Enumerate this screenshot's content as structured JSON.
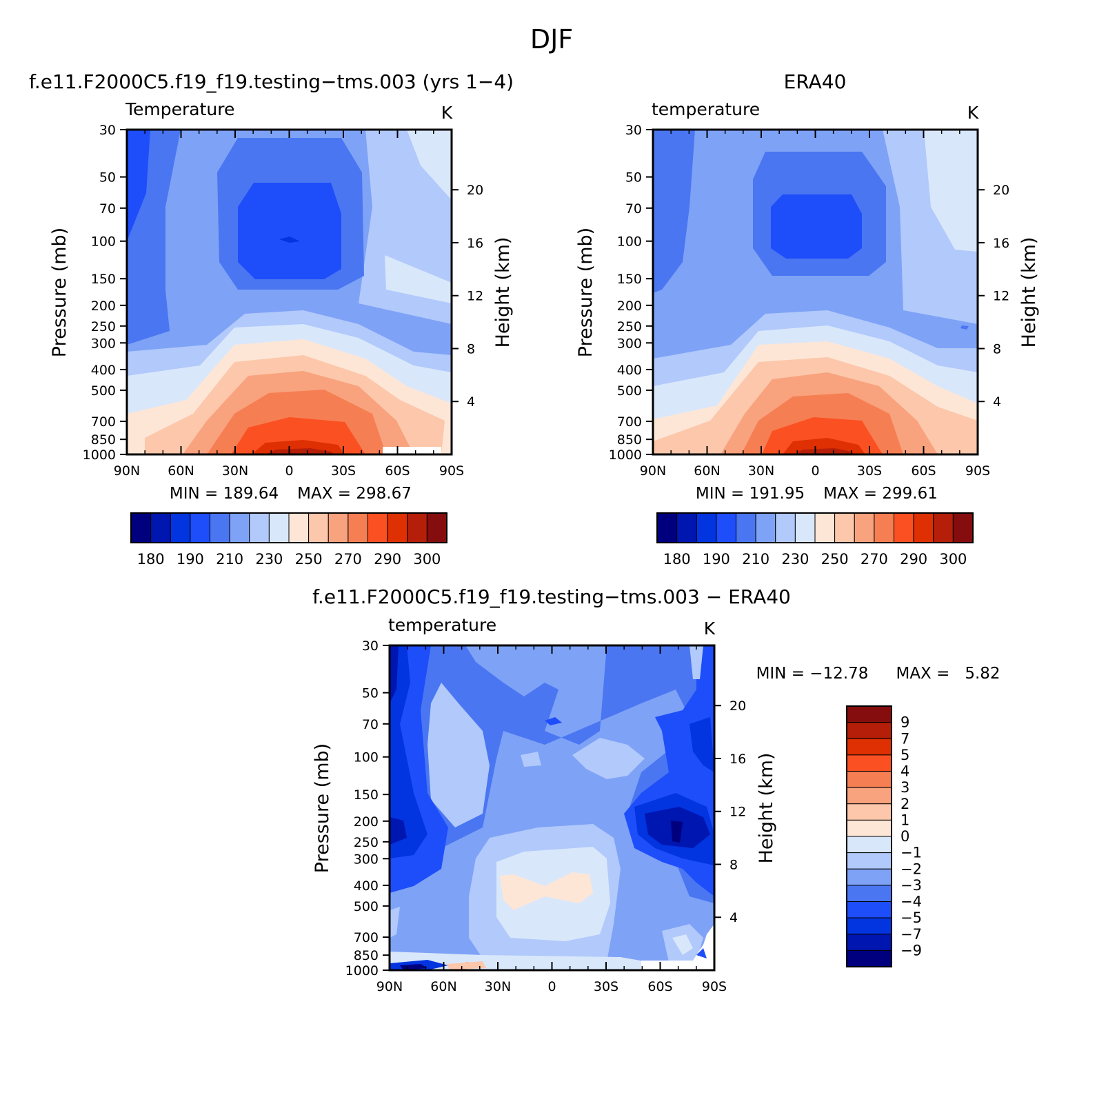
{
  "figure": {
    "title": "DJF"
  },
  "palette_abs": [
    "#00007f",
    "#0016b0",
    "#0234e0",
    "#1e4dfa",
    "#4a76f2",
    "#7ea2f6",
    "#b1c9fb",
    "#d9e7fb",
    "#fde6d6",
    "#fcc7aa",
    "#f8a27e",
    "#f67e53",
    "#fa5022",
    "#de3003",
    "#b51e09",
    "#850d0d"
  ],
  "palette_diff": [
    "#00007f",
    "#0016b0",
    "#0234e0",
    "#1e4dfa",
    "#4a76f2",
    "#7ea2f6",
    "#b1c9fb",
    "#d9e7fb",
    "#fde6d6",
    "#fcc7aa",
    "#f8a27e",
    "#f67e53",
    "#fa5022",
    "#de3003",
    "#b51e09",
    "#850d0d"
  ],
  "chart_data": [
    {
      "type": "heatmap",
      "title": "f.e11.F2000C5.f19_f19.testing−tms.003 (yrs 1−4)",
      "subtitle": "Temperature",
      "units": "K",
      "xlabel": "",
      "ylabel": "Pressure (mb)",
      "ylabel_right": "Height (km)",
      "x_ticks": [
        "90N",
        "60N",
        "30N",
        "0",
        "30S",
        "60S",
        "90S"
      ],
      "y_ticks": [
        30,
        50,
        70,
        100,
        150,
        200,
        250,
        300,
        400,
        500,
        700,
        850,
        1000
      ],
      "y_right_ticks": [
        20,
        16,
        12,
        8,
        4
      ],
      "min_label": "MIN = 189.64",
      "max_label": "MAX = 298.67",
      "min": 189.64,
      "max": 298.67,
      "colorbar_labels": [
        "180",
        "190",
        "210",
        "230",
        "250",
        "270",
        "290",
        "300"
      ],
      "levels": [
        175,
        180,
        185,
        190,
        200,
        210,
        220,
        230,
        240,
        250,
        260,
        270,
        280,
        290,
        295,
        300
      ]
    },
    {
      "type": "heatmap",
      "title": "ERA40",
      "subtitle": "temperature",
      "units": "K",
      "xlabel": "",
      "ylabel": "Pressure (mb)",
      "ylabel_right": "Height (km)",
      "x_ticks": [
        "90N",
        "60N",
        "30N",
        "0",
        "30S",
        "60S",
        "90S"
      ],
      "y_ticks": [
        30,
        50,
        70,
        100,
        150,
        200,
        250,
        300,
        400,
        500,
        700,
        850,
        1000
      ],
      "y_right_ticks": [
        20,
        16,
        12,
        8,
        4
      ],
      "min_label": "MIN = 191.95",
      "max_label": "MAX = 299.61",
      "min": 191.95,
      "max": 299.61,
      "colorbar_labels": [
        "180",
        "190",
        "210",
        "230",
        "250",
        "270",
        "290",
        "300"
      ],
      "levels": [
        175,
        180,
        185,
        190,
        200,
        210,
        220,
        230,
        240,
        250,
        260,
        270,
        280,
        290,
        295,
        300
      ]
    },
    {
      "type": "heatmap",
      "title": "f.e11.F2000C5.f19_f19.testing−tms.003 − ERA40",
      "subtitle": "temperature",
      "units": "K",
      "xlabel": "",
      "ylabel": "Pressure (mb)",
      "ylabel_right": "Height (km)",
      "x_ticks": [
        "90N",
        "60N",
        "30N",
        "0",
        "30S",
        "60S",
        "90S"
      ],
      "y_ticks": [
        30,
        50,
        70,
        100,
        150,
        200,
        250,
        300,
        400,
        500,
        700,
        850,
        1000
      ],
      "y_right_ticks": [
        20,
        16,
        12,
        8,
        4
      ],
      "min_label": "MIN = −12.78",
      "max_label": "MAX =   5.82",
      "min": -12.78,
      "max": 5.82,
      "colorbar_labels": [
        "9",
        "7",
        "5",
        "4",
        "3",
        "2",
        "1",
        "0",
        "−1",
        "−2",
        "−3",
        "−4",
        "−5",
        "−7",
        "−9"
      ]
    }
  ]
}
